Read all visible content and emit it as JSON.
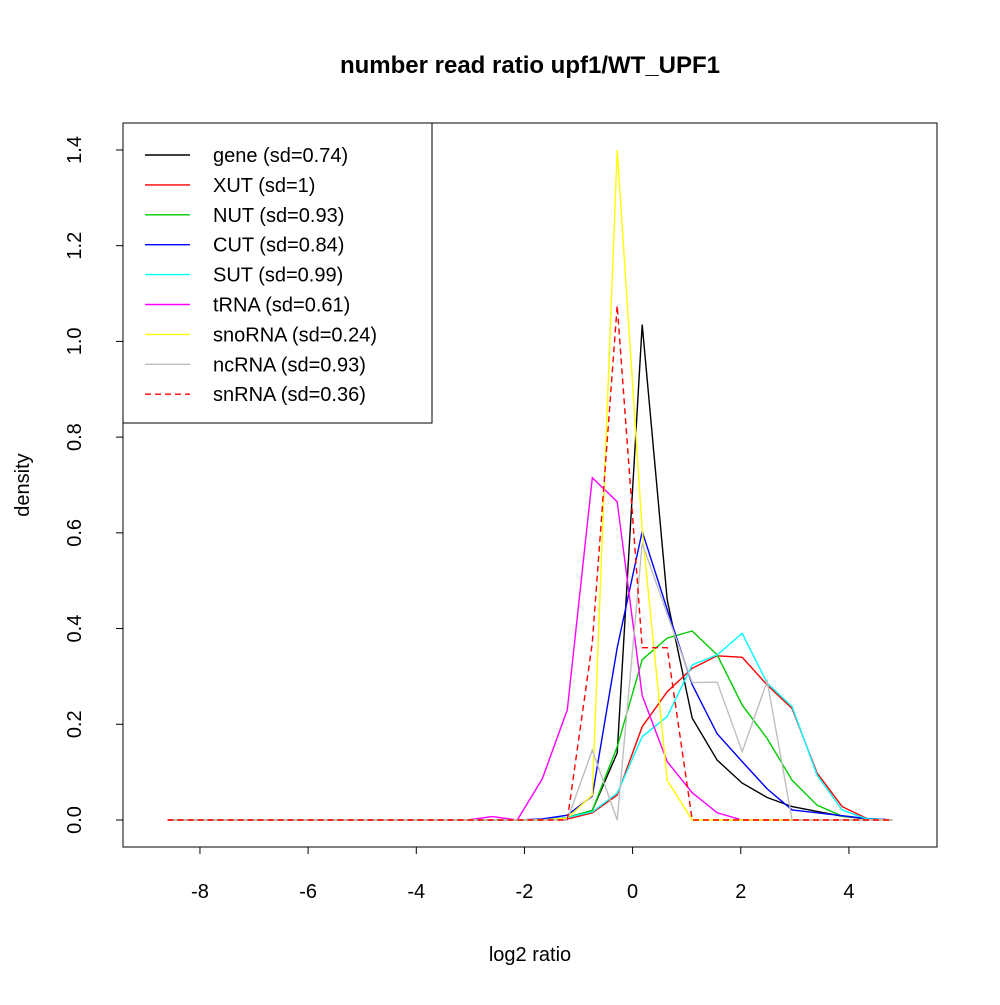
{
  "chart_data": {
    "type": "line",
    "title": "number read ratio upf1/WT_UPF1",
    "xlabel": "log2 ratio",
    "ylabel": "density",
    "xlim": [
      -9.1,
      5.6
    ],
    "ylim": [
      -0.057,
      1.457
    ],
    "xticks": [
      -8,
      -6,
      -4,
      -2,
      0,
      2,
      4
    ],
    "xtick_labels": [
      "-8",
      "-6",
      "-4",
      "-2",
      "0",
      "2",
      "4"
    ],
    "yticks": [
      0,
      0.2,
      0.4,
      0.6,
      0.8,
      1.0,
      1.2,
      1.4
    ],
    "ytick_labels": [
      "0.0",
      "0.2",
      "0.4",
      "0.6",
      "0.8",
      "1.0",
      "1.2",
      "1.4"
    ],
    "grid": false,
    "legend_position": "top-left",
    "x_start": -8.6,
    "x_step": 0.462,
    "n_points": 30,
    "series": [
      {
        "name": "gene (sd=0.74)",
        "color": "#000000",
        "dash": false,
        "nonzero": {
          "16": 0.005,
          "17": 0.02,
          "18": 0.14,
          "19": 1.035,
          "20": 0.46,
          "21": 0.213,
          "22": 0.125,
          "23": 0.077,
          "24": 0.047,
          "25": 0.028,
          "26": 0.018,
          "27": 0.008,
          "28": 0.002
        }
      },
      {
        "name": "XUT (sd=1)",
        "color": "#FF0000",
        "dash": false,
        "nonzero": {
          "16": 0.002,
          "17": 0.015,
          "18": 0.052,
          "19": 0.195,
          "20": 0.268,
          "21": 0.317,
          "22": 0.343,
          "23": 0.34,
          "24": 0.282,
          "25": 0.233,
          "26": 0.098,
          "27": 0.028,
          "28": 0.003
        }
      },
      {
        "name": "NUT (sd=0.93)",
        "color": "#00CD00",
        "dash": false,
        "nonzero": {
          "16": 0.005,
          "17": 0.02,
          "18": 0.153,
          "19": 0.335,
          "20": 0.38,
          "21": 0.395,
          "22": 0.345,
          "23": 0.24,
          "24": 0.17,
          "25": 0.083,
          "26": 0.031,
          "27": 0.008,
          "28": 0.003
        }
      },
      {
        "name": "CUT (sd=0.84)",
        "color": "#0000FF",
        "dash": false,
        "nonzero": {
          "15": 0.002,
          "16": 0.01,
          "17": 0.05,
          "18": 0.36,
          "19": 0.603,
          "20": 0.44,
          "21": 0.283,
          "22": 0.18,
          "23": 0.122,
          "24": 0.065,
          "25": 0.021,
          "26": 0.015,
          "27": 0.009,
          "28": 0.003
        }
      },
      {
        "name": "SUT (sd=0.99)",
        "color": "#00FFFF",
        "dash": false,
        "nonzero": {
          "16": 0.005,
          "17": 0.017,
          "18": 0.056,
          "19": 0.174,
          "20": 0.216,
          "21": 0.324,
          "22": 0.345,
          "23": 0.39,
          "24": 0.286,
          "25": 0.237,
          "26": 0.094,
          "27": 0.021,
          "28": 0.002
        }
      },
      {
        "name": "tRNA (sd=0.61)",
        "color": "#FF00FF",
        "dash": false,
        "nonzero": {
          "13": 0.007,
          "15": 0.086,
          "16": 0.23,
          "17": 0.715,
          "18": 0.665,
          "19": 0.26,
          "20": 0.122,
          "21": 0.057,
          "22": 0.015
        }
      },
      {
        "name": "snoRNA (sd=0.24)",
        "color": "#FFFF00",
        "dash": false,
        "nonzero": {
          "16": 0.004,
          "17": 0.052,
          "18": 1.4,
          "19": 0.605,
          "20": 0.083
        }
      },
      {
        "name": "ncRNA (sd=0.93)",
        "color": "#BEBEBE",
        "dash": false,
        "nonzero": {
          "17": 0.146,
          "19": 0.578,
          "20": 0.43,
          "21": 0.287,
          "22": 0.288,
          "23": 0.143,
          "24": 0.29
        }
      },
      {
        "name": "snRNA (sd=0.36)",
        "color": "#FF0000",
        "dash": true,
        "nonzero": {
          "17": 0.37,
          "18": 1.075,
          "19": 0.36,
          "20": 0.36
        }
      }
    ]
  }
}
